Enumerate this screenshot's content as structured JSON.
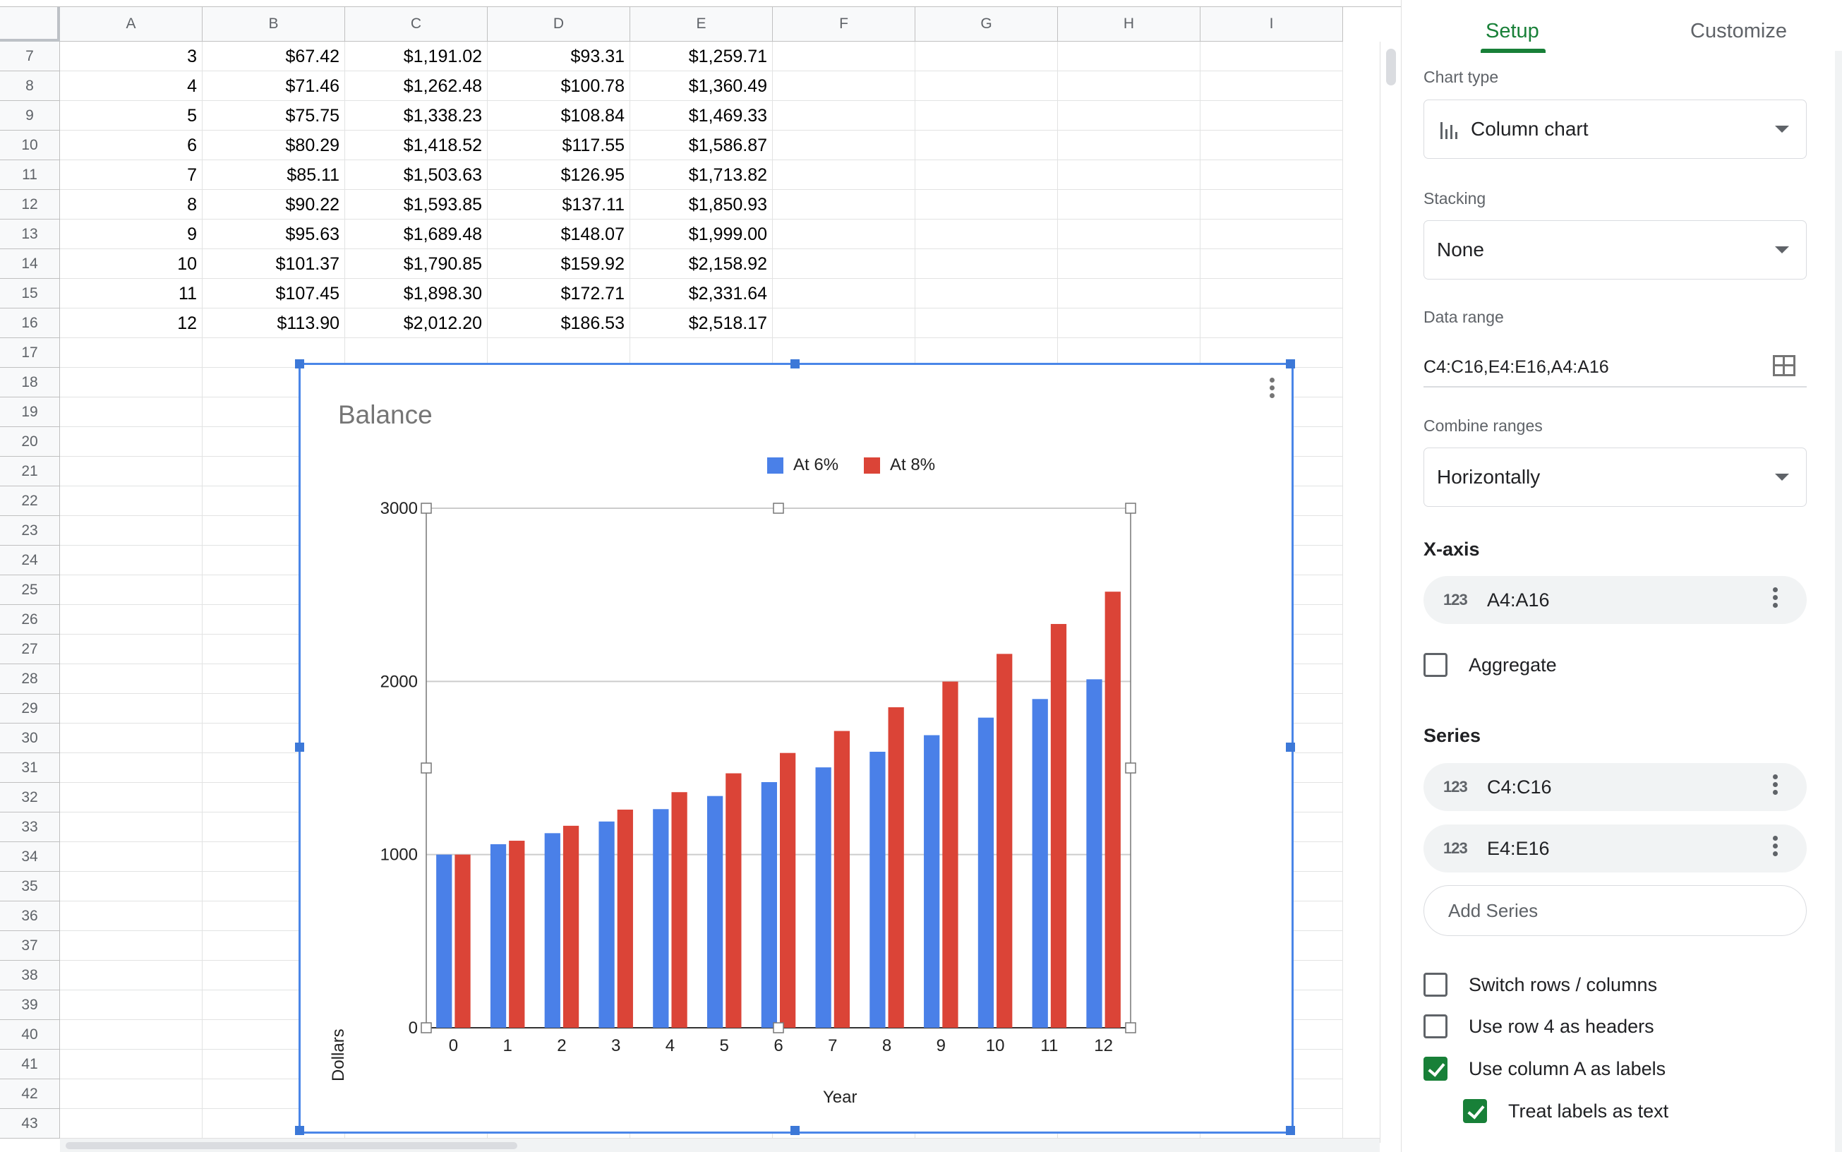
{
  "sheet": {
    "columns": [
      "A",
      "B",
      "C",
      "D",
      "E",
      "F",
      "G",
      "H",
      "I"
    ],
    "rows": [
      {
        "n": "7",
        "cells": [
          "3",
          "$67.42",
          "$1,191.02",
          "$93.31",
          "$1,259.71"
        ]
      },
      {
        "n": "8",
        "cells": [
          "4",
          "$71.46",
          "$1,262.48",
          "$100.78",
          "$1,360.49"
        ]
      },
      {
        "n": "9",
        "cells": [
          "5",
          "$75.75",
          "$1,338.23",
          "$108.84",
          "$1,469.33"
        ]
      },
      {
        "n": "10",
        "cells": [
          "6",
          "$80.29",
          "$1,418.52",
          "$117.55",
          "$1,586.87"
        ]
      },
      {
        "n": "11",
        "cells": [
          "7",
          "$85.11",
          "$1,503.63",
          "$126.95",
          "$1,713.82"
        ]
      },
      {
        "n": "12",
        "cells": [
          "8",
          "$90.22",
          "$1,593.85",
          "$137.11",
          "$1,850.93"
        ]
      },
      {
        "n": "13",
        "cells": [
          "9",
          "$95.63",
          "$1,689.48",
          "$148.07",
          "$1,999.00"
        ]
      },
      {
        "n": "14",
        "cells": [
          "10",
          "$101.37",
          "$1,790.85",
          "$159.92",
          "$2,158.92"
        ]
      },
      {
        "n": "15",
        "cells": [
          "11",
          "$107.45",
          "$1,898.30",
          "$172.71",
          "$2,331.64"
        ]
      },
      {
        "n": "16",
        "cells": [
          "12",
          "$113.90",
          "$2,012.20",
          "$186.53",
          "$2,518.17"
        ]
      },
      {
        "n": "17",
        "cells": []
      },
      {
        "n": "18",
        "cells": []
      },
      {
        "n": "19",
        "cells": []
      },
      {
        "n": "20",
        "cells": []
      },
      {
        "n": "21",
        "cells": []
      },
      {
        "n": "22",
        "cells": []
      },
      {
        "n": "23",
        "cells": []
      },
      {
        "n": "24",
        "cells": []
      },
      {
        "n": "25",
        "cells": []
      },
      {
        "n": "26",
        "cells": []
      },
      {
        "n": "27",
        "cells": []
      },
      {
        "n": "28",
        "cells": []
      },
      {
        "n": "29",
        "cells": []
      },
      {
        "n": "30",
        "cells": []
      },
      {
        "n": "31",
        "cells": []
      },
      {
        "n": "32",
        "cells": []
      },
      {
        "n": "33",
        "cells": []
      },
      {
        "n": "34",
        "cells": []
      },
      {
        "n": "35",
        "cells": []
      },
      {
        "n": "36",
        "cells": []
      },
      {
        "n": "37",
        "cells": []
      },
      {
        "n": "38",
        "cells": []
      },
      {
        "n": "39",
        "cells": []
      },
      {
        "n": "40",
        "cells": []
      },
      {
        "n": "41",
        "cells": []
      },
      {
        "n": "42",
        "cells": []
      },
      {
        "n": "43",
        "cells": []
      }
    ]
  },
  "chart_data": {
    "type": "bar",
    "title": "Balance",
    "xlabel": "Year",
    "ylabel": "Dollars",
    "categories": [
      "0",
      "1",
      "2",
      "3",
      "4",
      "5",
      "6",
      "7",
      "8",
      "9",
      "10",
      "11",
      "12"
    ],
    "yticks": [
      "0",
      "1000",
      "2000",
      "3000"
    ],
    "ylim": [
      0,
      3000
    ],
    "series": [
      {
        "name": "At 6%",
        "color": "#4a80e8",
        "values": [
          1000,
          1060,
          1123.6,
          1191.02,
          1262.48,
          1338.23,
          1418.52,
          1503.63,
          1593.85,
          1689.48,
          1790.85,
          1898.3,
          2012.2
        ]
      },
      {
        "name": "At 8%",
        "color": "#db4437",
        "values": [
          1000,
          1080,
          1166.4,
          1259.71,
          1360.49,
          1469.33,
          1586.87,
          1713.82,
          1850.93,
          1999.0,
          2158.92,
          2331.64,
          2518.17
        ]
      }
    ],
    "legend_position": "top",
    "grid": true
  },
  "panel": {
    "tabs": {
      "setup": "Setup",
      "customize": "Customize"
    },
    "chart_type_label": "Chart type",
    "chart_type_value": "Column chart",
    "stacking_label": "Stacking",
    "stacking_value": "None",
    "data_range_label": "Data range",
    "data_range_value": "C4:C16,E4:E16,A4:A16",
    "combine_label": "Combine ranges",
    "combine_value": "Horizontally",
    "xaxis_title": "X-axis",
    "xaxis_range": "A4:A16",
    "aggregate_label": "Aggregate",
    "series_title": "Series",
    "series": [
      "C4:C16",
      "E4:E16"
    ],
    "pill_icon": "123",
    "add_series": "Add Series",
    "options": [
      {
        "label": "Switch rows / columns",
        "checked": false
      },
      {
        "label": "Use row 4 as headers",
        "checked": false
      },
      {
        "label": "Use column A as labels",
        "checked": true
      },
      {
        "label": "Treat labels as text",
        "checked": true
      }
    ]
  },
  "colors": {
    "accent": "#188038",
    "selection": "#4a86e8"
  }
}
